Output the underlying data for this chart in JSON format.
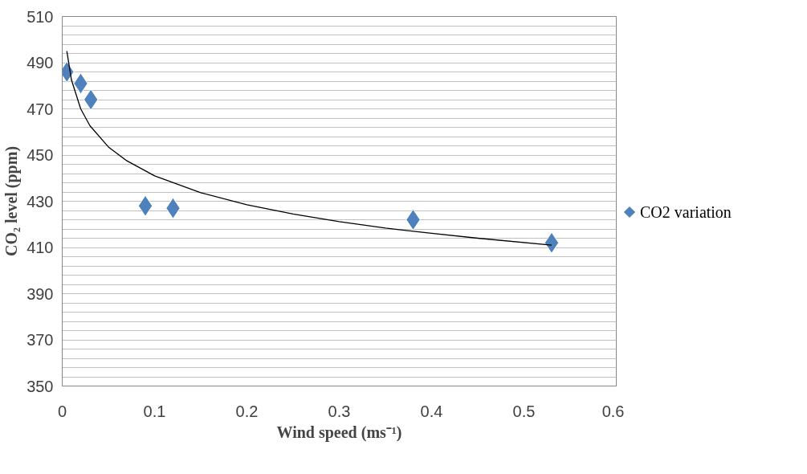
{
  "chart_data": {
    "type": "scatter",
    "xlabel": "Wind speed (ms⁻¹)",
    "ylabel": "CO₂ level (ppm)",
    "x": [
      0.005,
      0.02,
      0.031,
      0.09,
      0.12,
      0.38,
      0.53
    ],
    "series": [
      {
        "name": "CO2 variation",
        "color": "#4f81bd",
        "values": [
          486,
          481,
          474,
          428,
          427,
          422,
          412
        ],
        "marker": "diamond"
      },
      {
        "type": "line",
        "color": "#000000",
        "marker": "none",
        "line_style": "solid",
        "x": [
          0.005,
          0.01,
          0.02,
          0.03,
          0.05,
          0.07,
          0.1,
          0.15,
          0.2,
          0.25,
          0.3,
          0.35,
          0.4,
          0.45,
          0.53
        ],
        "values": [
          495,
          482.5,
          470,
          462.7,
          453.5,
          447.5,
          441,
          433.7,
          428.5,
          424.5,
          421.2,
          418.4,
          416.1,
          414,
          411
        ]
      }
    ],
    "xlim": [
      0,
      0.6
    ],
    "ylim": [
      350,
      510
    ],
    "xticks": [
      0,
      0.1,
      0.2,
      0.3,
      0.4,
      0.5,
      0.6
    ],
    "yticks": [
      350,
      {
        "value": 354,
        "label": null
      },
      {
        "value": 358,
        "label": null
      },
      {
        "value": 362,
        "label": null
      },
      {
        "value": 366,
        "label": null
      },
      370,
      {
        "value": 374,
        "label": null
      },
      {
        "value": 378,
        "label": null
      },
      {
        "value": 382,
        "label": null
      },
      {
        "value": 386,
        "label": null
      },
      390,
      {
        "value": 394,
        "label": null
      },
      {
        "value": 398,
        "label": null
      },
      {
        "value": 402,
        "label": null
      },
      {
        "value": 406,
        "label": null
      },
      410,
      {
        "value": 414,
        "label": null
      },
      {
        "value": 418,
        "label": null
      },
      {
        "value": 422,
        "label": null
      },
      {
        "value": 426,
        "label": null
      },
      430,
      {
        "value": 434,
        "label": null
      },
      {
        "value": 438,
        "label": null
      },
      {
        "value": 442,
        "label": null
      },
      {
        "value": 446,
        "label": null
      },
      450,
      {
        "value": 454,
        "label": null
      },
      {
        "value": 458,
        "label": null
      },
      {
        "value": 462,
        "label": null
      },
      {
        "value": 466,
        "label": null
      },
      470,
      {
        "value": 474,
        "label": null
      },
      {
        "value": 478,
        "label": null
      },
      {
        "value": 482,
        "label": null
      },
      {
        "value": 486,
        "label": null
      },
      490,
      {
        "value": 494,
        "label": null
      },
      {
        "value": 498,
        "label": null
      },
      {
        "value": 502,
        "label": null
      },
      {
        "value": 506,
        "label": null
      },
      510
    ],
    "grid": "y",
    "legend": "right"
  }
}
